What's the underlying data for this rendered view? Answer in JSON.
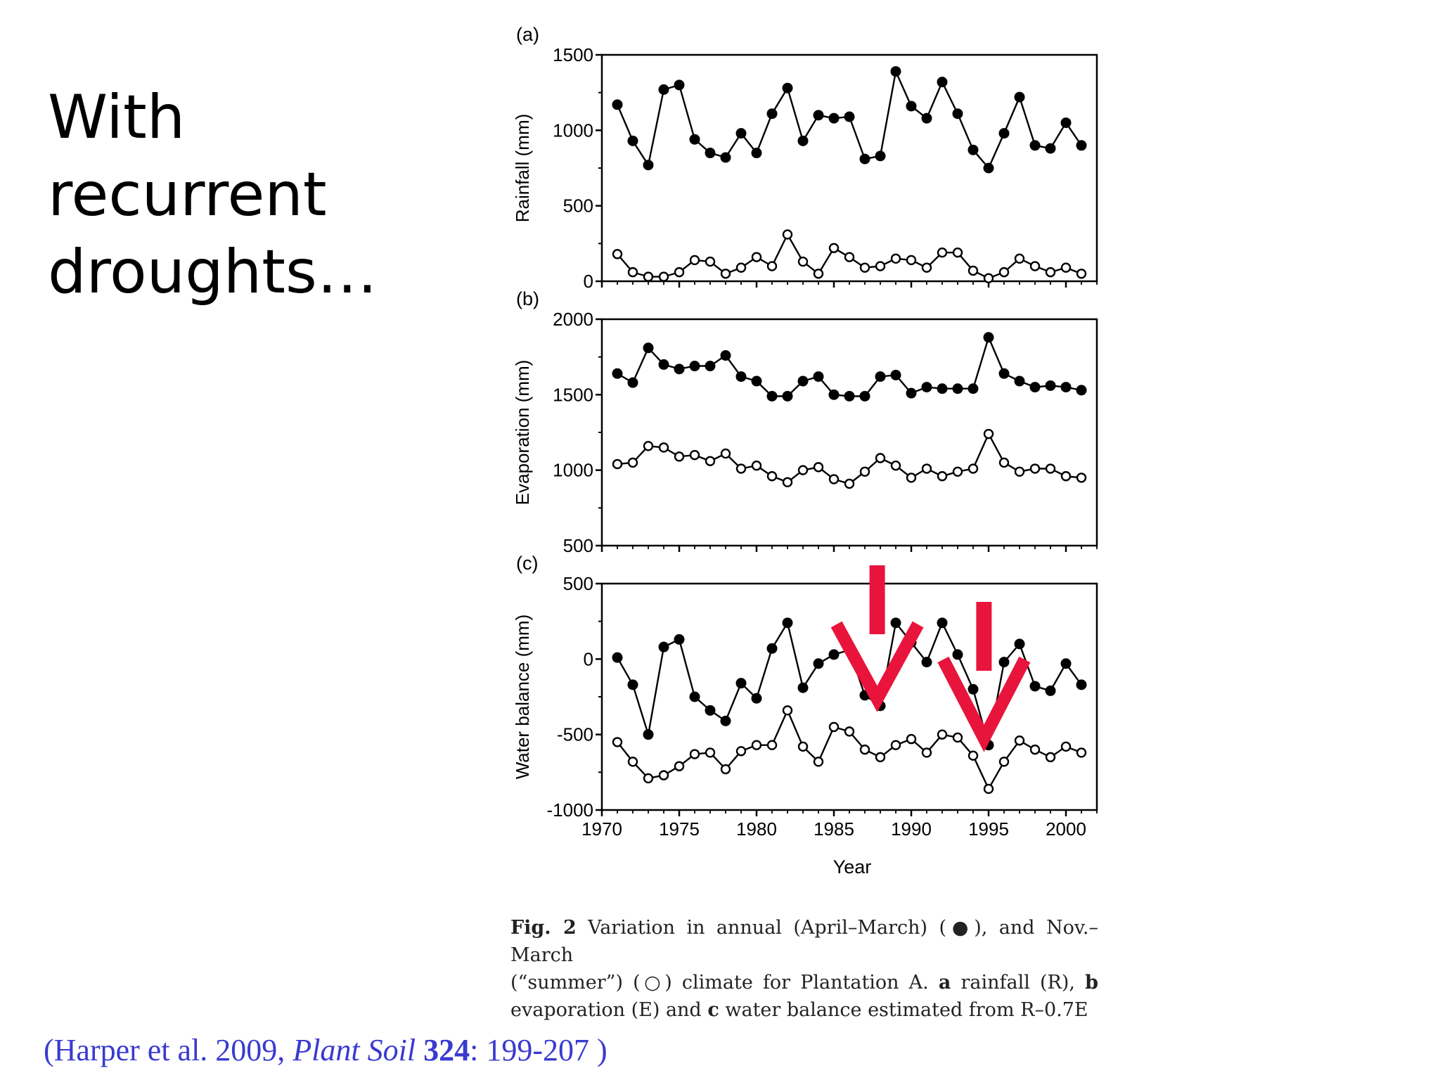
{
  "slide": {
    "title_lines": [
      "With",
      "recurrent",
      "droughts…"
    ]
  },
  "caption": {
    "fig_label": "Fig. 2",
    "line1": "Variation in annual (April–March) (●), and Nov.–March",
    "line2a": "(“summer”) (○) climate for Plantation A.",
    "line2_a": "a",
    "line2b": "rainfall (R),",
    "line2_b": "b",
    "line3a": "evaporation (E) and",
    "line3_c": "c",
    "line3b": "water balance estimated from R–0.7E"
  },
  "citation": {
    "prefix": "(Harper et al. 2009, ",
    "journal": "Plant Soil",
    "volume": "324",
    "suffix": ": 199-207 )"
  },
  "colors": {
    "annotation_arrows": "#e8143c",
    "series_line": "#000000",
    "citation_text": "#3a3ad0"
  },
  "chart_data": [
    {
      "type": "line",
      "panel_label": "(a)",
      "ylabel": "Rainfall (mm)",
      "xlabel": "",
      "ylim": [
        0,
        1500
      ],
      "yticks": [
        0,
        500,
        1000,
        1500
      ],
      "xlim": [
        1970,
        2002
      ],
      "xticks": [
        1970,
        1975,
        1980,
        1985,
        1990,
        1995,
        2000
      ],
      "x": [
        1971,
        1972,
        1973,
        1974,
        1975,
        1976,
        1977,
        1978,
        1979,
        1980,
        1981,
        1982,
        1983,
        1984,
        1985,
        1986,
        1987,
        1988,
        1989,
        1990,
        1991,
        1992,
        1993,
        1994,
        1995,
        1996,
        1997,
        1998,
        1999,
        2000,
        2001
      ],
      "series": [
        {
          "marker": "filled",
          "values": [
            1170,
            930,
            770,
            1270,
            1300,
            940,
            850,
            820,
            980,
            850,
            1110,
            1280,
            930,
            1100,
            1080,
            1090,
            810,
            830,
            1390,
            1160,
            1080,
            1320,
            1110,
            870,
            750,
            980,
            1220,
            900,
            880,
            1050,
            900
          ]
        },
        {
          "marker": "open",
          "values": [
            180,
            60,
            30,
            30,
            60,
            140,
            130,
            50,
            90,
            160,
            100,
            310,
            130,
            50,
            220,
            160,
            90,
            100,
            150,
            140,
            90,
            190,
            190,
            70,
            20,
            60,
            150,
            100,
            60,
            90,
            50
          ]
        }
      ]
    },
    {
      "type": "line",
      "panel_label": "(b)",
      "ylabel": "Evaporation (mm)",
      "xlabel": "",
      "ylim": [
        500,
        2000
      ],
      "yticks": [
        500,
        1000,
        1500,
        2000
      ],
      "xlim": [
        1970,
        2002
      ],
      "xticks": [
        1970,
        1975,
        1980,
        1985,
        1990,
        1995,
        2000
      ],
      "x": [
        1971,
        1972,
        1973,
        1974,
        1975,
        1976,
        1977,
        1978,
        1979,
        1980,
        1981,
        1982,
        1983,
        1984,
        1985,
        1986,
        1987,
        1988,
        1989,
        1990,
        1991,
        1992,
        1993,
        1994,
        1995,
        1996,
        1997,
        1998,
        1999,
        2000,
        2001
      ],
      "series": [
        {
          "marker": "filled",
          "values": [
            1640,
            1580,
            1810,
            1700,
            1670,
            1690,
            1690,
            1760,
            1620,
            1590,
            1490,
            1490,
            1590,
            1620,
            1500,
            1490,
            1490,
            1620,
            1630,
            1510,
            1550,
            1540,
            1540,
            1540,
            1880,
            1640,
            1590,
            1550,
            1560,
            1550,
            1530
          ]
        },
        {
          "marker": "open",
          "values": [
            1040,
            1050,
            1160,
            1150,
            1090,
            1100,
            1060,
            1110,
            1010,
            1030,
            960,
            920,
            1000,
            1020,
            940,
            910,
            990,
            1080,
            1030,
            950,
            1010,
            960,
            990,
            1010,
            1240,
            1050,
            990,
            1010,
            1010,
            960,
            950
          ]
        }
      ]
    },
    {
      "type": "line",
      "panel_label": "(c)",
      "ylabel": "Water balance (mm)",
      "xlabel": "Year",
      "ylim": [
        -1000,
        500
      ],
      "yticks": [
        -1000,
        -500,
        0,
        500
      ],
      "xlim": [
        1970,
        2002
      ],
      "xticks": [
        1970,
        1975,
        1980,
        1985,
        1990,
        1995,
        2000
      ],
      "x": [
        1971,
        1972,
        1973,
        1974,
        1975,
        1976,
        1977,
        1978,
        1979,
        1980,
        1981,
        1982,
        1983,
        1984,
        1985,
        1986,
        1987,
        1988,
        1989,
        1990,
        1991,
        1992,
        1993,
        1994,
        1995,
        1996,
        1997,
        1998,
        1999,
        2000,
        2001
      ],
      "series": [
        {
          "marker": "filled",
          "values": [
            10,
            -170,
            -500,
            80,
            130,
            -250,
            -340,
            -410,
            -160,
            -260,
            70,
            240,
            -190,
            -30,
            30,
            60,
            -240,
            -310,
            240,
            110,
            -20,
            240,
            30,
            -200,
            -570,
            -20,
            100,
            -180,
            -210,
            -30,
            -170
          ]
        },
        {
          "marker": "open",
          "values": [
            -550,
            -680,
            -790,
            -770,
            -710,
            -630,
            -620,
            -730,
            -610,
            -570,
            -570,
            -340,
            -580,
            -680,
            -450,
            -480,
            -600,
            -650,
            -570,
            -530,
            -620,
            -500,
            -520,
            -640,
            -860,
            -680,
            -540,
            -600,
            -650,
            -580,
            -620
          ]
        }
      ],
      "annotations": [
        {
          "type": "red-down-arrow",
          "x": 1987.8
        },
        {
          "type": "red-down-arrow",
          "x": 1994.7
        }
      ]
    }
  ]
}
